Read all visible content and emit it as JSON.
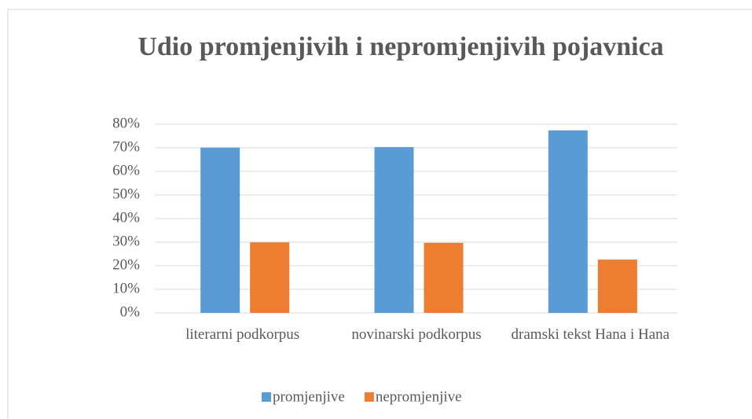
{
  "chart_data": {
    "type": "bar",
    "title": "Udio promjenjivih i nepromjenjivih pojavnica",
    "categories": [
      "literarni podkorpus",
      "novinarski podkorpus",
      "dramski tekst Hana i Hana"
    ],
    "series": [
      {
        "name": "promjenjive",
        "color": "#5b9bd5",
        "values": [
          70.1,
          70.3,
          77.4
        ]
      },
      {
        "name": "nepromjenjive",
        "color": "#ed7d31",
        "values": [
          29.9,
          29.7,
          22.6
        ]
      }
    ],
    "ylim": [
      0,
      80
    ],
    "yticks": [
      {
        "value": 0,
        "label": "0%"
      },
      {
        "value": 10,
        "label": "10%"
      },
      {
        "value": 20,
        "label": "20%"
      },
      {
        "value": 30,
        "label": "30%"
      },
      {
        "value": 40,
        "label": "40%"
      },
      {
        "value": 50,
        "label": "50%"
      },
      {
        "value": 60,
        "label": "60%"
      },
      {
        "value": 70,
        "label": "70%"
      },
      {
        "value": 80,
        "label": "80%"
      }
    ],
    "grid": true,
    "legend": "bottom"
  }
}
